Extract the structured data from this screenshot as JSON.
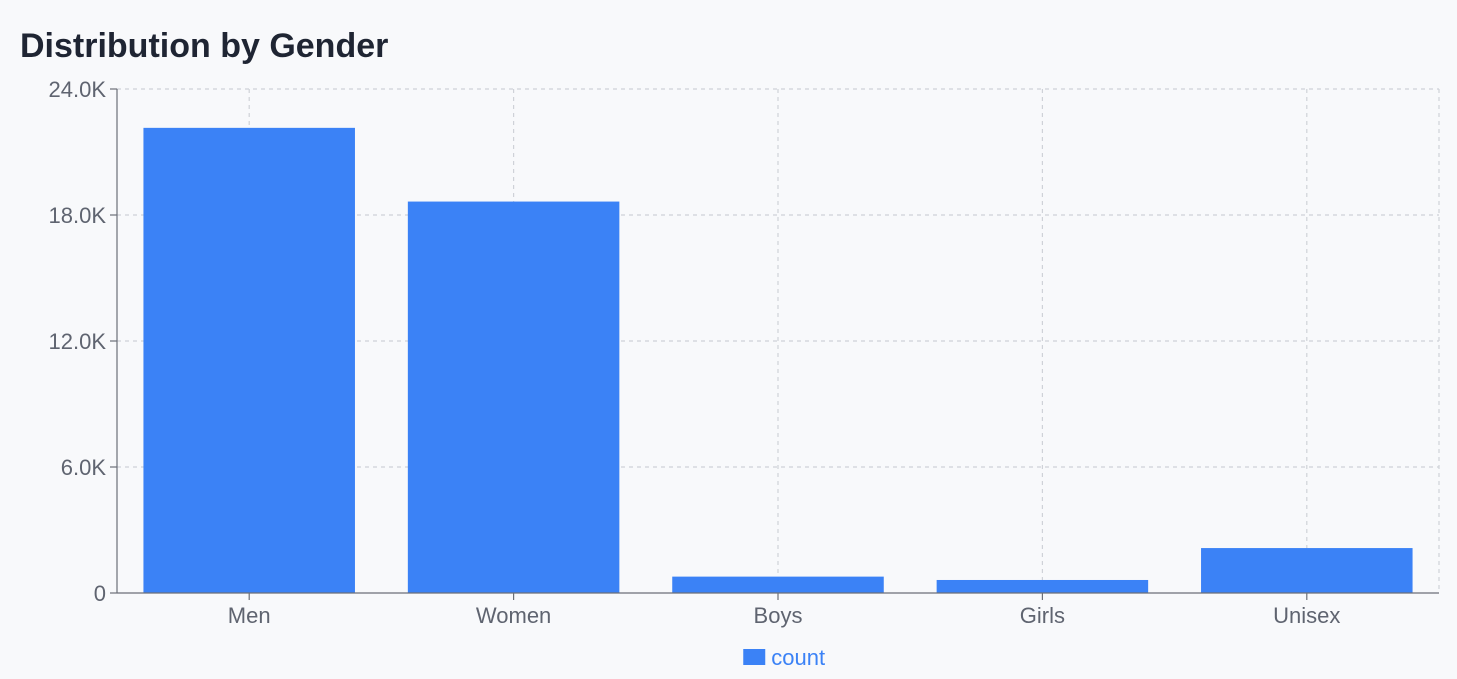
{
  "chart_data": {
    "type": "bar",
    "title": "Distribution by Gender",
    "xlabel": "",
    "ylabel": "",
    "categories": [
      "Men",
      "Women",
      "Boys",
      "Girls",
      "Unisex"
    ],
    "series": [
      {
        "name": "count",
        "values": [
          22150,
          18640,
          780,
          620,
          2140
        ]
      }
    ],
    "ylim": [
      0,
      24000
    ],
    "yticks": [
      0,
      6000,
      12000,
      18000,
      24000
    ],
    "ytick_labels": [
      "0",
      "6.0K",
      "12.0K",
      "18.0K",
      "24.0K"
    ],
    "grid": true,
    "legend_position": "bottom-center",
    "colors": {
      "bar": "#3b82f6",
      "legend_text": "#3b82f6",
      "grid": "#cfd2d8",
      "axis": "#6b6f78",
      "title": "#1f2533",
      "background": "#f8f9fb"
    }
  }
}
